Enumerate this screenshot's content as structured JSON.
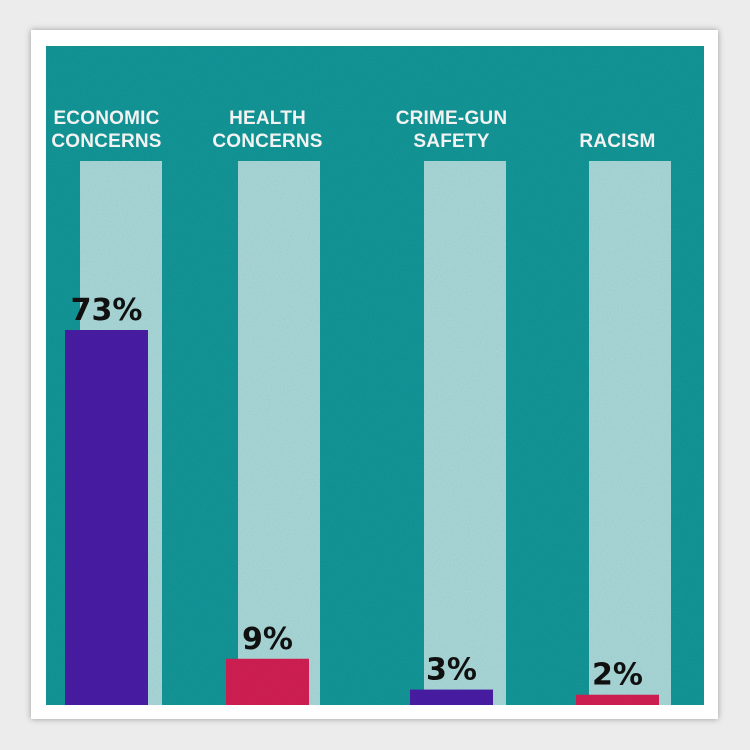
{
  "chart_data": {
    "type": "bar",
    "categories": [
      [
        "ECONOMIC",
        "CONCERNS"
      ],
      [
        "HEALTH",
        "CONCERNS"
      ],
      [
        "CRIME-GUN",
        "SAFETY"
      ],
      [
        "RACISM"
      ]
    ],
    "values": [
      73,
      9,
      3,
      2
    ],
    "value_labels": [
      "73%",
      "9%",
      "3%",
      "2%"
    ],
    "ylim": [
      0,
      100
    ],
    "grid": false,
    "legend": "none"
  },
  "colors": {
    "background": "#13999a",
    "track": "#acdcdc",
    "label_text": "#ffffff",
    "value_text": "#111111",
    "bars": [
      "#4a1da8",
      "#d51f55",
      "#4a1da8",
      "#d51f55"
    ]
  }
}
